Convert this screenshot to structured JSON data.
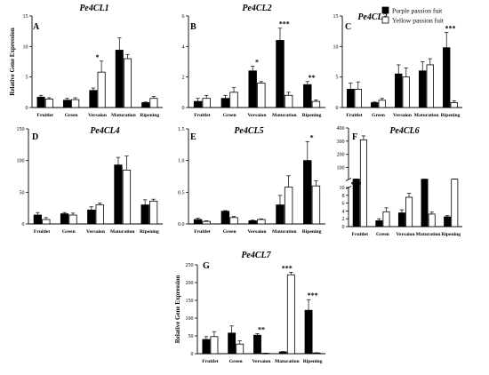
{
  "chart_data": [
    {
      "id": "A",
      "type": "bar",
      "title": "Pe4CL1",
      "ylabel": "Relative Gene Expression",
      "categories": [
        "Fruitlet",
        "Green",
        "Versaion",
        "Maturation",
        "Ripening"
      ],
      "ylim": [
        0,
        15
      ],
      "yticks": [
        0,
        5,
        10,
        15
      ],
      "series": [
        {
          "values": [
            1.7,
            1.2,
            2.8,
            9.4,
            0.8
          ],
          "errors": [
            0.3,
            0.3,
            0.4,
            2.0,
            0.1
          ]
        },
        {
          "values": [
            1.4,
            1.3,
            5.8,
            8.0,
            1.5
          ],
          "errors": [
            0.2,
            0.3,
            1.8,
            0.7,
            0.3
          ]
        }
      ],
      "significance": [
        {
          "category": "Versaion",
          "label": "*"
        }
      ]
    },
    {
      "id": "B",
      "type": "bar",
      "title": "Pe4CL2",
      "ylabel": "",
      "categories": [
        "Fruitlet",
        "Green",
        "Versaion",
        "Maturation",
        "Ripening"
      ],
      "ylim": [
        0,
        6
      ],
      "yticks": [
        0,
        2,
        4,
        6
      ],
      "series": [
        {
          "values": [
            0.4,
            0.6,
            2.4,
            4.4,
            1.5
          ],
          "errors": [
            0.2,
            0.2,
            0.3,
            0.8,
            0.2
          ]
        },
        {
          "values": [
            0.6,
            1.0,
            1.6,
            0.8,
            0.4
          ],
          "errors": [
            0.2,
            0.3,
            0.1,
            0.2,
            0.1
          ]
        }
      ],
      "significance": [
        {
          "category": "Versaion",
          "label": "*"
        },
        {
          "category": "Maturation",
          "label": "***"
        },
        {
          "category": "Ripening",
          "label": "**"
        }
      ]
    },
    {
      "id": "C",
      "type": "bar",
      "title": "Pe4CL3",
      "ylabel": "",
      "categories": [
        "Fruitlet",
        "Green",
        "Versaion",
        "Maturation",
        "Ripening"
      ],
      "ylim": [
        0,
        15
      ],
      "yticks": [
        0,
        5,
        10,
        15
      ],
      "series": [
        {
          "name": "Purple passion fuit",
          "values": [
            3.0,
            0.8,
            5.5,
            6.0,
            9.8
          ],
          "errors": [
            1.0,
            0.1,
            1.5,
            1.5,
            2.5
          ]
        },
        {
          "name": "Yellow passion fuit",
          "values": [
            3.0,
            1.2,
            5.0,
            7.0,
            0.8
          ],
          "errors": [
            1.2,
            0.3,
            1.5,
            1.0,
            0.3
          ]
        }
      ],
      "significance": [
        {
          "category": "Ripening",
          "label": "***"
        }
      ],
      "legend": "top-right"
    },
    {
      "id": "D",
      "type": "bar",
      "title": "Pe4CL4",
      "ylabel": "",
      "categories": [
        "Fruitlet",
        "Green",
        "Versaion",
        "Maturation",
        "Ripening"
      ],
      "ylim": [
        0,
        150
      ],
      "yticks": [
        0,
        50,
        100,
        150
      ],
      "series": [
        {
          "values": [
            14,
            16,
            22,
            93,
            30
          ],
          "errors": [
            4,
            2,
            5,
            12,
            8
          ]
        },
        {
          "values": [
            7,
            14,
            30,
            85,
            36
          ],
          "errors": [
            3,
            3,
            3,
            22,
            3
          ]
        }
      ],
      "significance": []
    },
    {
      "id": "E",
      "type": "bar",
      "title": "Pe4CL5",
      "ylabel": "",
      "categories": [
        "Fruitlet",
        "Green",
        "Versaion",
        "Maturation",
        "Ripening"
      ],
      "ylim": [
        0,
        1.5
      ],
      "yticks": [
        0,
        0.5,
        1.0,
        1.5
      ],
      "ytick_labels": [
        "0.0",
        "0.5",
        "1.0",
        "1.5"
      ],
      "series": [
        {
          "values": [
            0.07,
            0.2,
            0.05,
            0.3,
            1.0
          ],
          "errors": [
            0.02,
            0.01,
            0.01,
            0.15,
            0.3
          ]
        },
        {
          "values": [
            0.04,
            0.1,
            0.07,
            0.58,
            0.6
          ],
          "errors": [
            0.01,
            0.02,
            0.01,
            0.18,
            0.08
          ]
        }
      ],
      "significance": [
        {
          "category": "Ripening",
          "label": "*"
        }
      ]
    },
    {
      "id": "F",
      "type": "bar",
      "title": "Pe4CL6",
      "ylabel": "",
      "categories": [
        "Fruitlet",
        "Green",
        "Versaion",
        "Maturation",
        "Ripening"
      ],
      "broken_axis": {
        "lower": [
          0,
          10
        ],
        "upper": [
          10,
          400
        ]
      },
      "yticks_lower": [
        0,
        2,
        4,
        6,
        8,
        10
      ],
      "yticks_upper": [
        100,
        200,
        300,
        400
      ],
      "series": [
        {
          "values": [
            13,
            1.5,
            3.5,
            12,
            2.5
          ],
          "errors": [
            0.5,
            0.5,
            0.8,
            1.0,
            0.3
          ]
        },
        {
          "values": [
            310,
            3.8,
            7.5,
            3.2,
            13
          ],
          "errors": [
            30,
            1.0,
            1.0,
            0.5,
            0.5
          ]
        }
      ],
      "significance": [
        {
          "category": "Fruitlet",
          "label": "***"
        }
      ]
    },
    {
      "id": "G",
      "type": "bar",
      "title": "Pe4CL7",
      "ylabel": "Relative Gene Expression",
      "categories": [
        "Fruitlet",
        "Green",
        "Versaion",
        "Maturation",
        "Ripening"
      ],
      "ylim": [
        0,
        250
      ],
      "yticks": [
        0,
        50,
        100,
        150,
        200,
        250
      ],
      "series": [
        {
          "values": [
            40,
            58,
            52,
            5,
            122
          ],
          "errors": [
            8,
            20,
            4,
            1,
            30
          ]
        },
        {
          "values": [
            48,
            27,
            1,
            222,
            2
          ],
          "errors": [
            14,
            9,
            0.5,
            7,
            0.5
          ]
        }
      ],
      "significance": [
        {
          "category": "Versaion",
          "label": "**"
        },
        {
          "category": "Maturation",
          "label": "***"
        },
        {
          "category": "Ripening",
          "label": "***"
        }
      ]
    }
  ]
}
